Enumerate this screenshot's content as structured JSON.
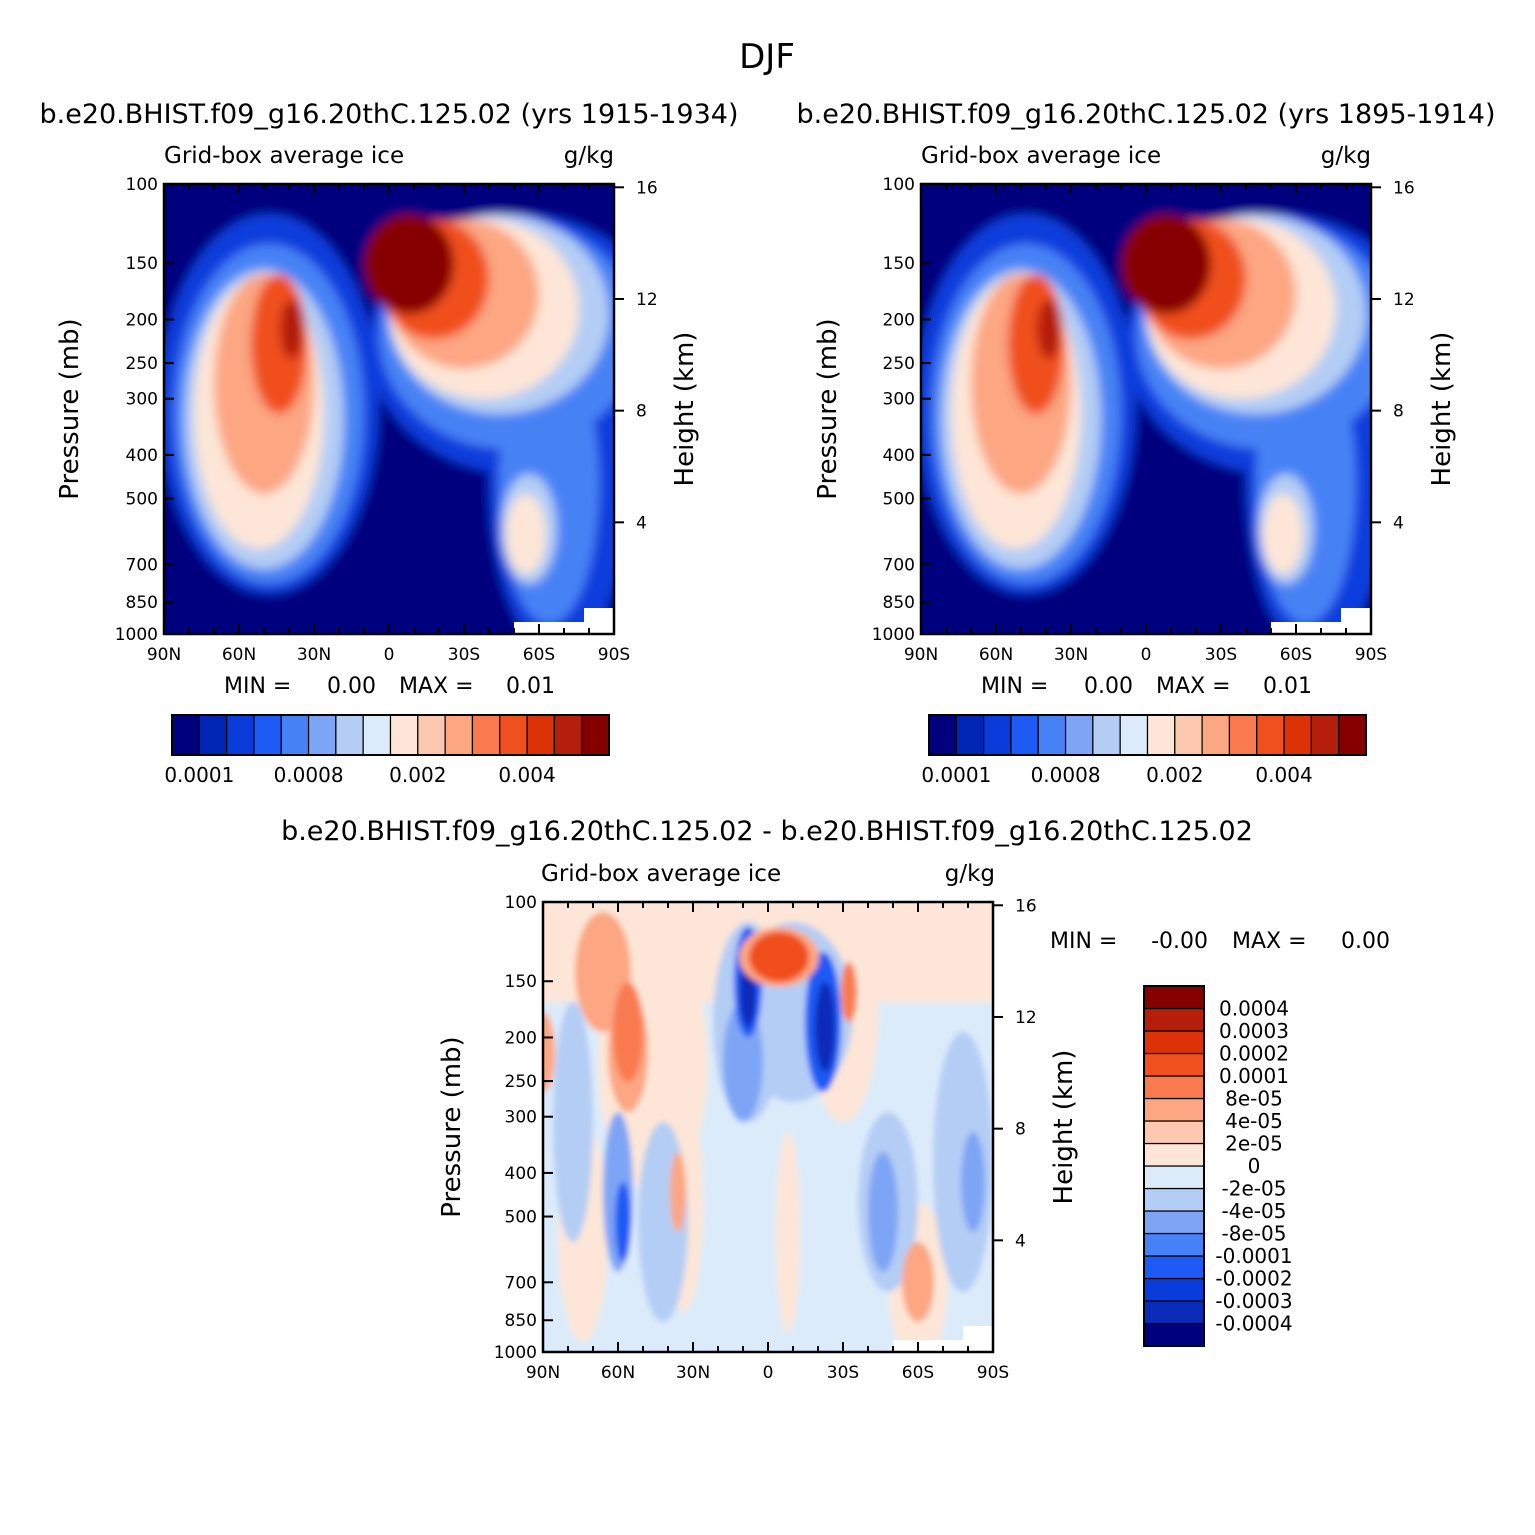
{
  "title": "DJF",
  "colors": {
    "abs_palette": [
      "#00007f",
      "#0024b4",
      "#0a3cdc",
      "#1e5af5",
      "#4682f5",
      "#7ea5f5",
      "#b4cdf5",
      "#dcebfa",
      "#fde6d7",
      "#fcc8b0",
      "#fca682",
      "#fa7a50",
      "#f0501e",
      "#dc3208",
      "#b41e0a",
      "#870000"
    ],
    "diff_palette": [
      "#00007f",
      "#0a2ab8",
      "#0a3cdc",
      "#1e5af5",
      "#4682f5",
      "#7ea5f5",
      "#b4cdf5",
      "#dcebfa",
      "#fde6d7",
      "#fcc8b0",
      "#fca682",
      "#fa7a50",
      "#f0501e",
      "#dc3208",
      "#b41e0a",
      "#870000"
    ]
  },
  "panels": {
    "left": {
      "case_title": "b.e20.BHIST.f09_g16.20thC.125.02 (yrs 1915-1934)",
      "variable": "Grid-box average ice",
      "units": "g/kg",
      "ylabel": "Pressure (mb)",
      "y2label": "Height (km)",
      "min_label": "MIN =",
      "min_value": "0.00",
      "max_label": "MAX =",
      "max_value": "0.01"
    },
    "right": {
      "case_title": "b.e20.BHIST.f09_g16.20thC.125.02 (yrs 1895-1914)",
      "variable": "Grid-box average ice",
      "units": "g/kg",
      "ylabel": "Pressure (mb)",
      "y2label": "Height (km)",
      "min_label": "MIN =",
      "min_value": "0.00",
      "max_label": "MAX =",
      "max_value": "0.01"
    },
    "diff": {
      "case_title": "b.e20.BHIST.f09_g16.20thC.125.02 - b.e20.BHIST.f09_g16.20thC.125.02",
      "variable": "Grid-box average ice",
      "units": "g/kg",
      "ylabel": "Pressure (mb)",
      "y2label": "Height (km)",
      "min_label": "MIN =",
      "min_value": "-0.00",
      "max_label": "MAX =",
      "max_value": "0.00"
    }
  },
  "chart_data": [
    {
      "type": "heatmap",
      "id": "left",
      "title": "b.e20.BHIST.f09_g16.20thC.125.02 (yrs 1915-1934)",
      "xlabel": "",
      "ylabel": "Pressure (mb)",
      "y2label": "Height (km)",
      "x_range": [
        -90,
        90
      ],
      "x_ticks": [
        "90N",
        "60N",
        "30N",
        "0",
        "30S",
        "60S",
        "90S"
      ],
      "y_range": [
        100,
        1000
      ],
      "y_ticks": [
        100,
        150,
        200,
        250,
        300,
        400,
        500,
        700,
        850,
        1000
      ],
      "y2_ticks": [
        16,
        12,
        8,
        4
      ],
      "min": 0.0,
      "max": 0.01,
      "colorbar_labels": [
        "0.0001",
        "0.0008",
        "0.002",
        "0.004"
      ]
    },
    {
      "type": "heatmap",
      "id": "right",
      "title": "b.e20.BHIST.f09_g16.20thC.125.02 (yrs 1895-1914)",
      "xlabel": "",
      "ylabel": "Pressure (mb)",
      "y2label": "Height (km)",
      "x_range": [
        -90,
        90
      ],
      "x_ticks": [
        "90N",
        "60N",
        "30N",
        "0",
        "30S",
        "60S",
        "90S"
      ],
      "y_range": [
        100,
        1000
      ],
      "y_ticks": [
        100,
        150,
        200,
        250,
        300,
        400,
        500,
        700,
        850,
        1000
      ],
      "y2_ticks": [
        16,
        12,
        8,
        4
      ],
      "min": 0.0,
      "max": 0.01,
      "colorbar_labels": [
        "0.0001",
        "0.0008",
        "0.002",
        "0.004"
      ]
    },
    {
      "type": "heatmap",
      "id": "diff",
      "title": "b.e20.BHIST.f09_g16.20thC.125.02 - b.e20.BHIST.f09_g16.20thC.125.02",
      "xlabel": "",
      "ylabel": "Pressure (mb)",
      "y2label": "Height (km)",
      "x_range": [
        -90,
        90
      ],
      "x_ticks": [
        "90N",
        "60N",
        "30N",
        "0",
        "30S",
        "60S",
        "90S"
      ],
      "y_range": [
        100,
        1000
      ],
      "y_ticks": [
        100,
        150,
        200,
        250,
        300,
        400,
        500,
        700,
        850,
        1000
      ],
      "y2_ticks": [
        16,
        12,
        8,
        4
      ],
      "min": -0.0,
      "max": 0.0,
      "colorbar_labels": [
        "0.0004",
        "0.0003",
        "0.0002",
        "0.0001",
        "8e-05",
        "4e-05",
        "2e-05",
        "0",
        "-2e-05",
        "-4e-05",
        "-8e-05",
        "-0.0001",
        "-0.0002",
        "-0.0003",
        "-0.0004"
      ]
    }
  ]
}
